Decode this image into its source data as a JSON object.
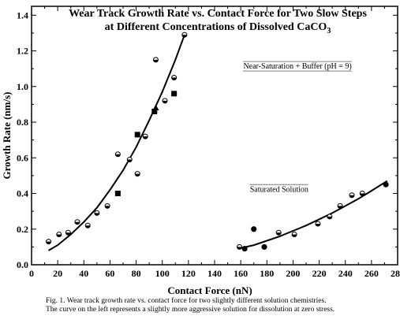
{
  "chart_data": {
    "type": "scatter",
    "title": [
      "Wear Track Growth Rate vs. Contact Force for Two Slow Steps",
      "at Different Concentrations of Dissolved CaCO"
    ],
    "title_subscript": "3",
    "xlabel": "Contact Force (nN)",
    "ylabel": "Growth Rate (nm/s)",
    "xlim": [
      0,
      280
    ],
    "ylim": [
      0,
      1.45
    ],
    "xticks": [
      0,
      20,
      40,
      60,
      80,
      100,
      120,
      140,
      160,
      180,
      200,
      220,
      240,
      260,
      280
    ],
    "yticks": [
      0.0,
      0.2,
      0.4,
      0.6,
      0.8,
      1.0,
      1.2,
      1.4
    ],
    "ytick_labels": [
      "0.0",
      "0.2",
      "0.4",
      "0.6",
      "0.8",
      "1.0",
      "1.2",
      "1.4"
    ],
    "annotations": [
      {
        "text": "Near-Saturation + Buffer (pH = 9)",
        "x": 162,
        "y": 1.1
      },
      {
        "text": "Saturated Solution",
        "x": 167,
        "y": 0.41
      }
    ],
    "series": [
      {
        "marker": "half-circle",
        "points": [
          [
            13,
            0.13
          ],
          [
            21,
            0.17
          ],
          [
            28,
            0.18
          ],
          [
            35,
            0.24
          ],
          [
            43,
            0.22
          ],
          [
            50,
            0.29
          ],
          [
            58,
            0.33
          ],
          [
            66,
            0.62
          ],
          [
            75,
            0.59
          ],
          [
            81,
            0.51
          ],
          [
            87,
            0.72
          ],
          [
            95,
            1.15
          ],
          [
            102,
            0.92
          ],
          [
            109,
            1.05
          ],
          [
            117,
            1.29
          ]
        ]
      },
      {
        "marker": "square",
        "points": [
          [
            66,
            0.4
          ],
          [
            81,
            0.73
          ],
          [
            94,
            0.86
          ],
          [
            109,
            0.96
          ]
        ]
      },
      {
        "marker": "triangle",
        "points": [
          [
            95,
            0.88
          ]
        ]
      },
      {
        "marker": "half-circle",
        "points": [
          [
            159,
            0.1
          ],
          [
            163,
            0.09
          ],
          [
            170,
            0.2
          ],
          [
            178,
            0.1
          ],
          [
            189,
            0.18
          ],
          [
            201,
            0.17
          ],
          [
            219,
            0.23
          ],
          [
            228,
            0.27
          ],
          [
            236,
            0.33
          ],
          [
            245,
            0.39
          ],
          [
            253,
            0.4
          ],
          [
            271,
            0.45
          ]
        ]
      },
      {
        "marker": "filled-circle",
        "points": [
          [
            163,
            0.09
          ],
          [
            170,
            0.2
          ],
          [
            178,
            0.1
          ],
          [
            271,
            0.45
          ]
        ]
      }
    ],
    "fit_curves": [
      {
        "x": [
          13,
          20,
          30,
          40,
          50,
          60,
          70,
          80,
          90,
          100,
          110,
          117
        ],
        "y": [
          0.08,
          0.11,
          0.17,
          0.24,
          0.32,
          0.42,
          0.53,
          0.66,
          0.81,
          0.97,
          1.15,
          1.29
        ]
      },
      {
        "x": [
          158,
          170,
          180,
          190,
          200,
          210,
          220,
          230,
          240,
          250,
          260,
          272
        ],
        "y": [
          0.09,
          0.11,
          0.135,
          0.16,
          0.19,
          0.22,
          0.255,
          0.29,
          0.33,
          0.37,
          0.415,
          0.47
        ]
      }
    ]
  },
  "caption": {
    "line1": "Fig. 1.  Wear track growth rate vs. contact force for two slightly different solution chemistries.",
    "line2": "The curve on the left represents a slightly more aggressive solution for dissolution at zero stress."
  }
}
